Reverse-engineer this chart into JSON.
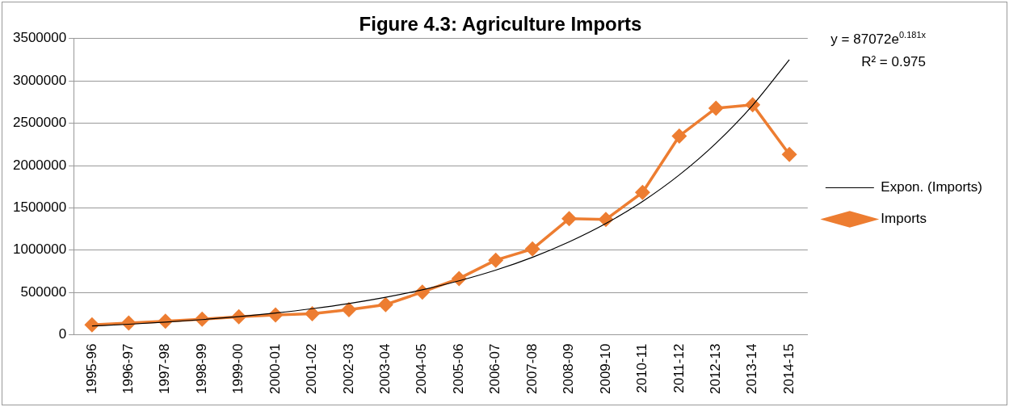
{
  "chart_data": {
    "type": "line",
    "title": "Figure 4.3: Agriculture Imports",
    "categories": [
      "1995-96",
      "1996-97",
      "1997-98",
      "1998-99",
      "1999-00",
      "2000-01",
      "2001-02",
      "2002-03",
      "2003-04",
      "2004-05",
      "2005-06",
      "2006-07",
      "2007-08",
      "2008-09",
      "2009-10",
      "2010-11",
      "2011-12",
      "2012-13",
      "2013-14",
      "2014-15"
    ],
    "series": [
      {
        "name": "Imports",
        "color": "#ed7d31",
        "marker": "diamond",
        "values": [
          118000,
          139000,
          160000,
          185000,
          213000,
          234000,
          250000,
          296000,
          357000,
          505000,
          665000,
          882000,
          1014000,
          1372000,
          1363000,
          1683000,
          2349000,
          2678000,
          2719000,
          2132000
        ]
      },
      {
        "name": "Expon. (Imports)",
        "color": "#000000",
        "marker": "none",
        "values": [
          104000,
          125000,
          150000,
          180000,
          215000,
          258000,
          309000,
          370000,
          444000,
          532000,
          638000,
          764000,
          916000,
          1098000,
          1315000,
          1576000,
          1889000,
          2264000,
          2713000,
          3252000
        ]
      }
    ],
    "ylim": [
      0,
      3500000
    ],
    "yticks": [
      0,
      500000,
      1000000,
      1500000,
      2000000,
      2500000,
      3000000,
      3500000
    ],
    "grid": "y",
    "legend": "right",
    "annotations": [
      "y = 87072e$^{0.181x}$",
      "R² = 0.975"
    ]
  }
}
